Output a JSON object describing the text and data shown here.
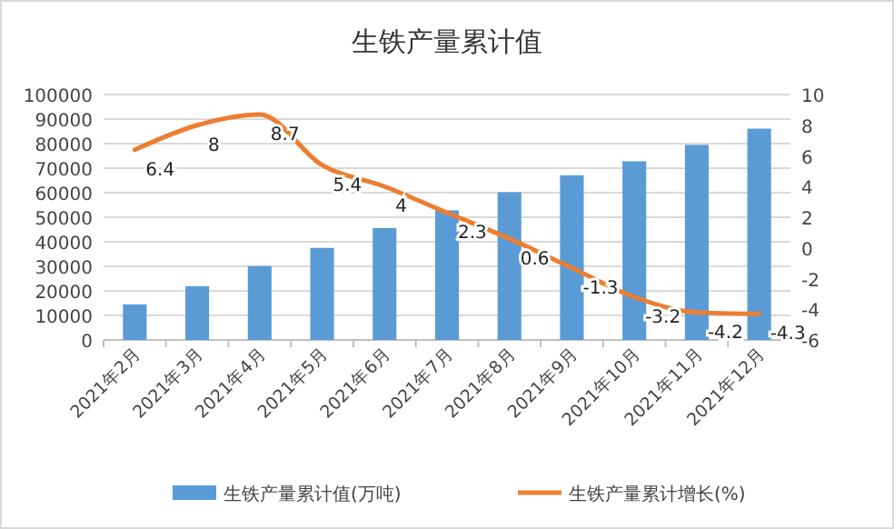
{
  "chart_data": {
    "type": "bar",
    "title": "生铁产量累计值",
    "categories": [
      "2021年2月",
      "2021年3月",
      "2021年4月",
      "2021年5月",
      "2021年6月",
      "2021年7月",
      "2021年8月",
      "2021年9月",
      "2021年10月",
      "2021年11月",
      "2021年12月"
    ],
    "series": [
      {
        "name": "生铁产量累计值(万吨)",
        "color": "#5b9bd5",
        "values": [
          14500,
          21900,
          30100,
          37500,
          45600,
          52800,
          60200,
          67100,
          72800,
          79500,
          86100
        ]
      },
      {
        "name": "生铁产量累计增长(%)",
        "type": "line",
        "axis": "y2",
        "color": "#ed7d31",
        "values": [
          6.4,
          8,
          8.7,
          5.4,
          4,
          2.3,
          0.6,
          -1.3,
          -3.2,
          -4.2,
          -4.3
        ],
        "value_labels": [
          "6.4",
          "8",
          "8.7",
          "5.4",
          "4",
          "2.3",
          "0.6",
          "-1.3",
          "-3.2",
          "-4.2",
          "-4.3"
        ]
      }
    ],
    "ylim": [
      0,
      100000
    ],
    "yticks": [
      0,
      10000,
      20000,
      30000,
      40000,
      50000,
      60000,
      70000,
      80000,
      90000,
      100000
    ],
    "y2lim": [
      -6,
      10
    ],
    "y2ticks": [
      -6,
      -4,
      -2,
      0,
      2,
      4,
      6,
      8,
      10
    ],
    "grid": "y",
    "legend": "bottom"
  }
}
